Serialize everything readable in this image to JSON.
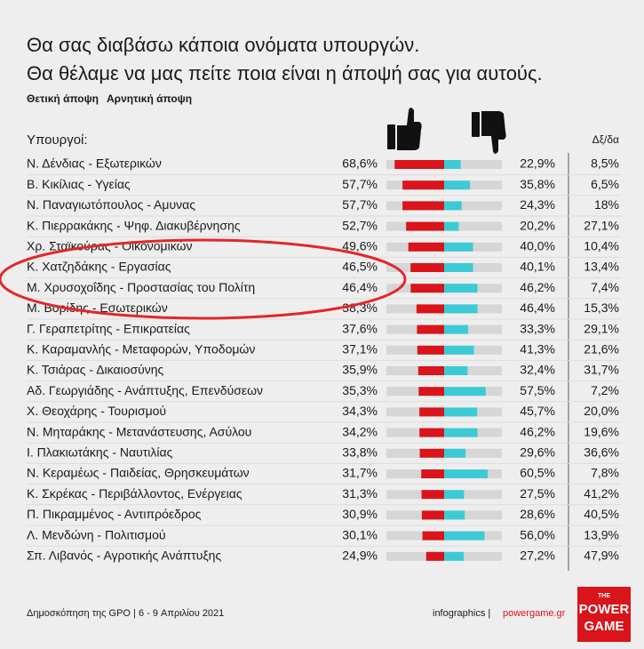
{
  "title": "Θα σας διαβάσω κάποια ονόματα υπουργών.",
  "subtitle": "Θα θέλαμε να μας πείτε ποια είναι η άποψή σας για αυτούς.",
  "chart_data": {
    "type": "diverging_bar",
    "category_header": "Υπουργοί:",
    "categories": [
      "Ν. Δένδιας - Εξωτερικών",
      "Β. Κικίλιας - Υγείας",
      "Ν. Παναγιωτόπουλος - Αμυνας",
      "Κ. Πιερρακάκης - Ψηφ. Διακυβέρνησης",
      "Χρ. Σταϊκούρας - Οικονομικών",
      "Κ. Χατζηδάκης - Εργασίας",
      "Μ. Χρυσοχοΐδης - Προστασίας του Πολίτη",
      "Μ. Βορίδης - Εσωτερικών",
      "Γ. Γεραπετρίτης - Επικρατείας",
      "Κ. Καραμανλής - Μεταφορών, Υποδομών",
      "Κ. Τσιάρας - Δικαιοσύνης",
      "Αδ. Γεωργιάδης - Ανάπτυξης, Επενδύσεων",
      "Χ. Θεοχάρης - Τουρισμού",
      "Ν. Μηταράκης - Μετανάστευσης, Ασύλου",
      "Ι. Πλακιωτάκης - Ναυτιλίας",
      "Ν. Κεραμέως - Παιδείας, Θρησκευμάτων",
      "Κ. Σκρέκας - Περιβάλλοντος, Ενέργειας",
      "Π. Πικραμμένος - Αντιπρόεδρος",
      "Λ. Μενδώνη - Πολιτισμού",
      "Σπ. Λιβανός - Αγροτικής Ανάπτυξης"
    ],
    "xlim": [
      0,
      80
    ],
    "series": [
      {
        "name": "Θετική άποψη",
        "color": "#d9141b",
        "values": [
          68.6,
          57.7,
          57.7,
          52.7,
          49.6,
          46.5,
          46.4,
          38.3,
          37.6,
          37.1,
          35.9,
          35.3,
          34.3,
          34.2,
          33.8,
          31.7,
          31.3,
          30.9,
          30.1,
          24.9
        ],
        "value_labels": [
          "68,6%",
          "57,7%",
          "57,7%",
          "52,7%",
          "49,6%",
          "46,5%",
          "46,4%",
          "38,3%",
          "37,6%",
          "37,1%",
          "35,9%",
          "35,3%",
          "34,3%",
          "34,2%",
          "33,8%",
          "31,7%",
          "31,3%",
          "30,9%",
          "30,1%",
          "24,9%"
        ]
      },
      {
        "name": "Αρνητική άποψη",
        "color": "#3ccbd4",
        "values": [
          22.9,
          35.8,
          24.3,
          20.2,
          40.0,
          40.1,
          46.2,
          46.4,
          33.3,
          41.3,
          32.4,
          57.5,
          45.7,
          46.2,
          29.6,
          60.5,
          27.5,
          28.6,
          56.0,
          27.2
        ],
        "value_labels": [
          "22,9%",
          "35,8%",
          "24,3%",
          "20,2%",
          "40,0%",
          "40,1%",
          "46,2%",
          "46,4%",
          "33,3%",
          "41,3%",
          "32,4%",
          "57,5%",
          "45,7%",
          "46,2%",
          "29,6%",
          "60,5%",
          "27,5%",
          "28,6%",
          "56,0%",
          "27,2%"
        ]
      },
      {
        "name": "Δξ/δα",
        "values": [
          8.5,
          6.5,
          18,
          27.1,
          10.4,
          13.4,
          7.4,
          15.3,
          29.1,
          21.6,
          31.7,
          7.2,
          20.0,
          19.6,
          36.6,
          7.8,
          41.2,
          40.5,
          13.9,
          47.9
        ],
        "value_labels": [
          "8,5%",
          "6,5%",
          "18%",
          "27,1%",
          "10,4%",
          "13,4%",
          "7,4%",
          "15,3%",
          "29,1%",
          "21,6%",
          "31,7%",
          "7,2%",
          "20,0%",
          "19,6%",
          "36,6%",
          "7,8%",
          "41,2%",
          "40,5%",
          "13,9%",
          "47,9%"
        ]
      }
    ]
  },
  "footer": {
    "source": "Δημοσκόπηση της GPO | 6 - 9 Απριλίου 2021",
    "credit": "infographics |",
    "site": "powergame.gr",
    "logo": [
      "THE",
      "POWER",
      "GAME"
    ]
  }
}
